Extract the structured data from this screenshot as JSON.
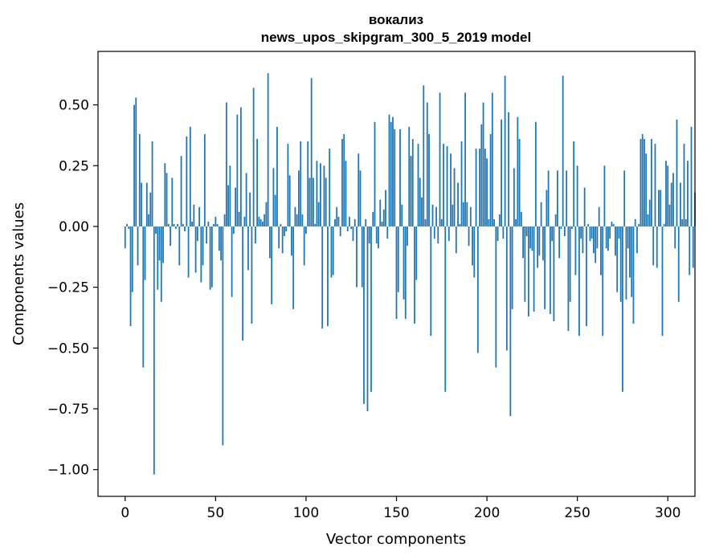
{
  "chart_data": {
    "type": "bar",
    "title": [
      "вокализ",
      "news_upos_skipgram_300_5_2019 model"
    ],
    "xlabel": "Vector components",
    "ylabel": "Components values",
    "xlim": [
      -15,
      315
    ],
    "ylim": [
      -1.11,
      0.72
    ],
    "bar_color": "#1f77b4",
    "x_ticks": [
      0,
      50,
      100,
      150,
      200,
      250,
      300
    ],
    "y_ticks": [
      0.5,
      0.25,
      0.0,
      -0.25,
      -0.5,
      -0.75,
      -1.0
    ],
    "x_tick_labels": [
      "0",
      "50",
      "100",
      "150",
      "200",
      "250",
      "300"
    ],
    "y_tick_labels": [
      "0.50",
      "0.25",
      "0.00",
      "−0.25",
      "−0.50",
      "−0.75",
      "−1.00"
    ],
    "values": [
      -0.09,
      0.01,
      -0.01,
      -0.41,
      -0.27,
      0.5,
      0.53,
      -0.16,
      0.38,
      0.18,
      -0.58,
      -0.22,
      0.18,
      0.05,
      0.14,
      0.35,
      -1.02,
      -0.03,
      -0.26,
      -0.14,
      -0.31,
      -0.15,
      0.26,
      0.22,
      0.01,
      -0.08,
      0.2,
      0.01,
      -0.01,
      0.01,
      -0.16,
      0.29,
      0.01,
      -0.02,
      0.37,
      -0.21,
      0.41,
      0.02,
      0.09,
      -0.19,
      -0.06,
      0.08,
      -0.23,
      -0.16,
      0.38,
      -0.07,
      0.02,
      -0.26,
      -0.25,
      0.01,
      0.04,
      0.01,
      -0.1,
      -0.14,
      -0.9,
      0.05,
      0.51,
      0.17,
      0.25,
      -0.29,
      -0.03,
      0.16,
      0.46,
      0.06,
      0.49,
      -0.47,
      0.04,
      0.22,
      -0.18,
      0.14,
      -0.4,
      0.57,
      -0.07,
      0.36,
      0.04,
      0.03,
      0.02,
      0.05,
      0.1,
      0.63,
      -0.13,
      -0.32,
      0.24,
      0.13,
      0.41,
      -0.09,
      0.01,
      -0.11,
      -0.04,
      -0.02,
      0.34,
      0.21,
      -0.12,
      -0.34,
      0.08,
      0.05,
      0.23,
      0.35,
      0.05,
      -0.16,
      -0.03,
      0.35,
      0.2,
      0.61,
      0.2,
      0.01,
      0.27,
      0.1,
      0.26,
      -0.42,
      0.25,
      0.2,
      -0.41,
      0.32,
      -0.21,
      -0.2,
      0.03,
      0.08,
      0.04,
      -0.04,
      0.36,
      0.38,
      0.27,
      -0.02,
      0.04,
      -0.01,
      -0.06,
      0.03,
      -0.25,
      0.3,
      0.23,
      -0.25,
      -0.73,
      0.03,
      -0.76,
      -0.07,
      -0.68,
      0.06,
      0.43,
      -0.07,
      -0.09,
      0.11,
      0.02,
      0.07,
      0.15,
      -0.05,
      0.46,
      0.43,
      0.45,
      0.4,
      -0.38,
      -0.27,
      0.4,
      0.09,
      -0.3,
      -0.38,
      -0.08,
      0.41,
      0.29,
      0.36,
      -0.4,
      -0.22,
      0.34,
      0.2,
      0.12,
      0.58,
      0.03,
      0.51,
      0.38,
      -0.45,
      0.09,
      -0.05,
      0.08,
      -0.07,
      0.55,
      0.03,
      0.34,
      -0.68,
      0.33,
      -0.06,
      0.3,
      0.09,
      0.24,
      -0.11,
      0.18,
      0.01,
      0.35,
      0.1,
      0.55,
      0.1,
      -0.08,
      0.08,
      -0.16,
      -0.21,
      0.32,
      -0.52,
      0.32,
      0.42,
      0.51,
      0.32,
      0.28,
      0.03,
      0.38,
      0.55,
      0.03,
      -0.58,
      -0.06,
      0.05,
      0.44,
      -0.05,
      0.62,
      -0.51,
      0.47,
      -0.78,
      -0.34,
      0.24,
      0.03,
      0.45,
      0.36,
      0.06,
      -0.13,
      -0.31,
      -0.04,
      -0.37,
      -0.09,
      -0.1,
      -0.35,
      0.43,
      -0.17,
      -0.12,
      0.1,
      -0.14,
      -0.34,
      0.15,
      0.23,
      -0.36,
      -0.06,
      -0.39,
      0.05,
      0.23,
      -0.13,
      -0.01,
      0.62,
      -0.04,
      0.23,
      -0.43,
      -0.31,
      -0.01,
      0.35,
      -0.2,
      0.25,
      -0.45,
      -0.05,
      -0.11,
      0.16,
      -0.41,
      0.01,
      -0.06,
      -0.05,
      -0.11,
      -0.15,
      -0.09,
      0.08,
      -0.2,
      -0.45,
      0.25,
      -0.09,
      -0.1,
      -0.05,
      0.02,
      0.01,
      -0.12,
      -0.27,
      -0.05,
      -0.31,
      -0.68,
      0.23,
      -0.3,
      -0.09,
      -0.21,
      -0.29,
      -0.4,
      0.03,
      -0.11,
      0.01,
      0.36,
      0.38,
      0.36,
      0.3,
      0.05,
      0.11,
      0.36,
      -0.16,
      0.34,
      -0.17,
      0.15,
      0.15,
      -0.45,
      0.01,
      0.27,
      0.25,
      0.09,
      0.18,
      0.22,
      -0.09,
      0.44,
      -0.31,
      0.18,
      0.03,
      0.34,
      0.03,
      0.27,
      -0.2,
      0.41,
      -0.17,
      0.14
    ]
  }
}
